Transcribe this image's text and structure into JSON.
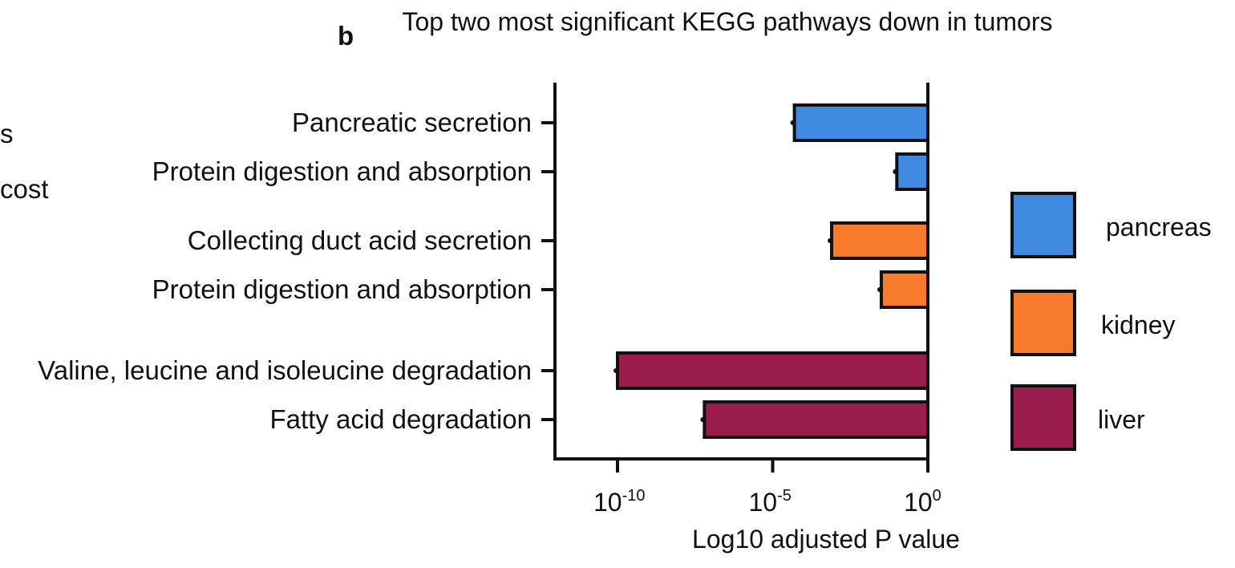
{
  "panel_label": "b",
  "left_edge_fragments": [
    "s",
    "cost"
  ],
  "chart_data": {
    "type": "bar",
    "orientation": "horizontal",
    "title": "Top two most significant KEGG pathways down in tumors",
    "xlabel": "Log10 adjusted P value",
    "ylabel": "",
    "x_scale": "log10",
    "xlim": [
      1e-12,
      1
    ],
    "x_ticks": [
      {
        "base": "10",
        "exp": "-10",
        "value": -10
      },
      {
        "base": "10",
        "exp": "-5",
        "value": -5
      },
      {
        "base": "10",
        "exp": "0",
        "value": 0
      }
    ],
    "categories": [
      "Pancreatic secretion",
      "Protein digestion and absorption",
      "Collecting duct acid secretion",
      "Protein digestion and absorption",
      "Valine, leucine and isoleucine degradation",
      "Fatty acid degradation"
    ],
    "groups": [
      "pancreas",
      "pancreas",
      "kidney",
      "kidney",
      "liver",
      "liver"
    ],
    "log10_values": [
      -4.3,
      -1.0,
      -3.1,
      -1.5,
      -10.0,
      -7.2
    ],
    "legend": [
      {
        "name": "pancreas",
        "color": "#3f8ae0"
      },
      {
        "name": "kidney",
        "color": "#f77b2b"
      },
      {
        "name": "liver",
        "color": "#9b1d4e"
      }
    ],
    "legend_position": "right",
    "grid": false
  }
}
